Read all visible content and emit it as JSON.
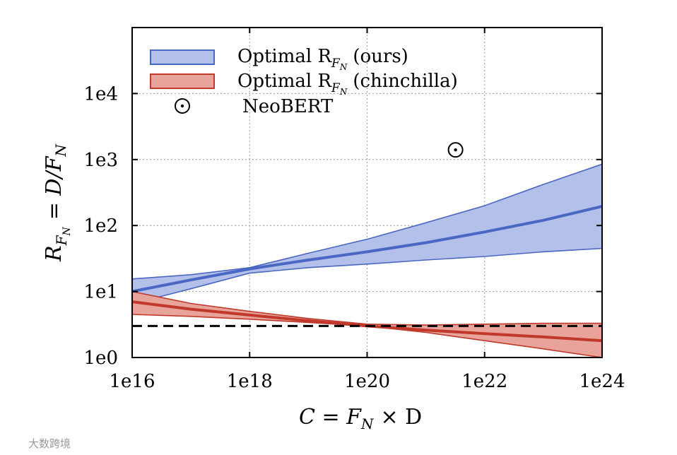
{
  "chart_data": {
    "type": "area",
    "xscale": "log10",
    "yscale": "log10",
    "xlim": [
      1e+16,
      1e+24
    ],
    "ylim": [
      1,
      100000.0
    ],
    "x_ticks": [
      {
        "value": 1e+16,
        "label": "1e16"
      },
      {
        "value": 1e+18,
        "label": "1e18"
      },
      {
        "value": 1e+20,
        "label": "1e20"
      },
      {
        "value": 1e+22,
        "label": "1e22"
      },
      {
        "value": 1e+24,
        "label": "1e24"
      }
    ],
    "y_ticks": [
      {
        "value": 1,
        "label": "1e0"
      },
      {
        "value": 10,
        "label": "1e1"
      },
      {
        "value": 100,
        "label": "1e2"
      },
      {
        "value": 1000,
        "label": "1e3"
      },
      {
        "value": 10000,
        "label": "1e4"
      }
    ],
    "grid": true,
    "xlabel": "C = F",
    "xlabel_sub": "N",
    "xlabel_tail": "× D",
    "ylabel": "R",
    "ylabel_sub": "F",
    "ylabel_subsub": "N",
    "ylabel_tail": "= D/F",
    "ylabel_tail_sub": "N",
    "series": [
      {
        "name": "Optimal R",
        "name_sub": "F",
        "name_subsub": "N",
        "name_tail": "(ours)",
        "color": "#4a67c4",
        "fill": "#b3c0ea",
        "x": [
          1e+16,
          1e+17,
          1e+18,
          1e+19,
          1e+20,
          1e+21,
          1e+22,
          1e+23,
          1e+24
        ],
        "mid": [
          10,
          15,
          22,
          30,
          40,
          55,
          80,
          120,
          195
        ],
        "lower": [
          6.5,
          11,
          19,
          23,
          26,
          30,
          34,
          40,
          45
        ],
        "upper": [
          15.5,
          18,
          23,
          38,
          62,
          110,
          200,
          420,
          850
        ]
      },
      {
        "name": "Optimal R",
        "name_sub": "F",
        "name_subsub": "N",
        "name_tail": "(chinchilla)",
        "color": "#c0392b",
        "fill": "#e8a39a",
        "x": [
          1e+16,
          1e+17,
          1e+18,
          1e+19,
          1e+20,
          1e+21,
          1e+22,
          1e+23,
          1e+24
        ],
        "mid": [
          7,
          5.4,
          4.4,
          3.6,
          3.0,
          2.6,
          2.3,
          2.05,
          1.8
        ],
        "lower": [
          4.5,
          4.2,
          3.8,
          3.4,
          3.0,
          2.4,
          1.8,
          1.35,
          1.0
        ],
        "upper": [
          10,
          6.6,
          5.0,
          3.9,
          3.2,
          3.1,
          3.2,
          3.3,
          3.3
        ]
      }
    ],
    "reference_line": {
      "y": 3,
      "style": "dashed",
      "color": "#000000"
    },
    "points": [
      {
        "name": "NeoBERT",
        "x": 3.2e+21,
        "y": 1400,
        "marker": "circled-dot"
      }
    ],
    "legend_position": "top-left"
  },
  "watermark": {
    "text": "大数跨境"
  }
}
